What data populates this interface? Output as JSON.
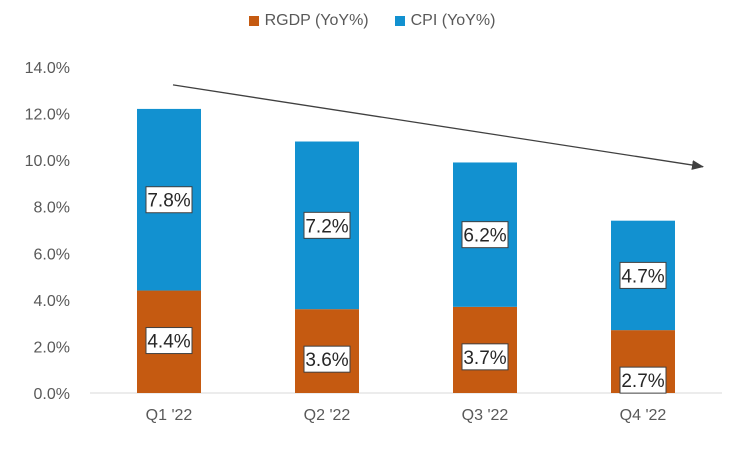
{
  "chart_data": {
    "type": "bar",
    "stacked": true,
    "categories": [
      "Q1 '22",
      "Q2 '22",
      "Q3 '22",
      "Q4 '22"
    ],
    "series": [
      {
        "name": "RGDP (YoY%)",
        "values": [
          4.4,
          3.6,
          3.7,
          2.7
        ],
        "color": "#C55A11",
        "labels": [
          "4.4%",
          "3.6%",
          "3.7%",
          "2.7%"
        ]
      },
      {
        "name": "CPI (YoY%)",
        "values": [
          7.8,
          7.2,
          6.2,
          4.7
        ],
        "color": "#1291D0",
        "labels": [
          "7.8%",
          "7.2%",
          "6.2%",
          "4.7%"
        ]
      }
    ],
    "ylim": [
      0,
      14
    ],
    "yticks": [
      "0.0%",
      "2.0%",
      "4.0%",
      "6.0%",
      "8.0%",
      "10.0%",
      "12.0%",
      "14.0%"
    ],
    "grid": false,
    "legend": "top-center",
    "annotations": [
      {
        "type": "trend-arrow",
        "direction": "downward"
      }
    ]
  }
}
